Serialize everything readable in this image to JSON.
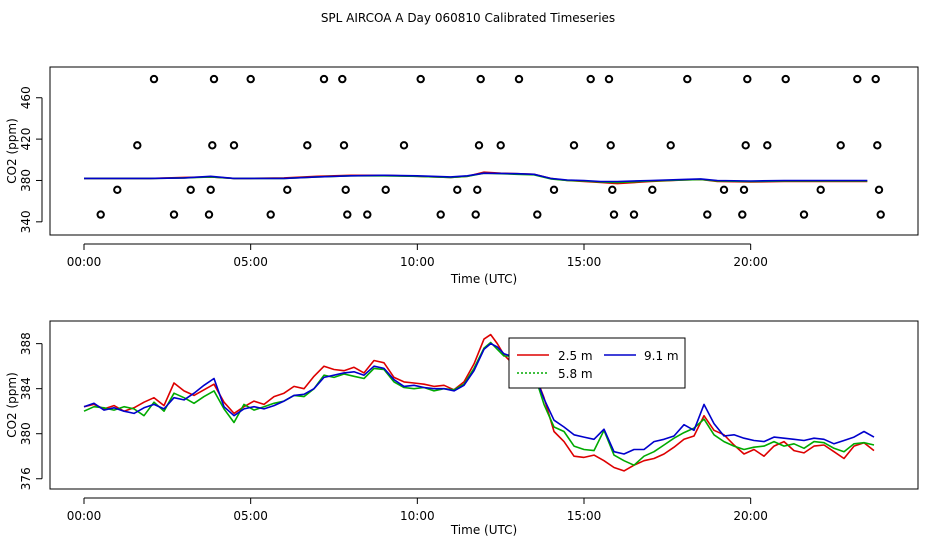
{
  "title": "SPL AIRCOA A  Day 060810  Calibrated Timeseries",
  "chart_data": [
    {
      "type": "line",
      "ylabel": "CO2 (ppm)",
      "xlabel": "Time (UTC)",
      "xlim": [
        0,
        24
      ],
      "ylim": [
        335,
        482
      ],
      "x_ticks": [
        0,
        5,
        10,
        15,
        20
      ],
      "x_tick_labels": [
        "00:00",
        "05:00",
        "10:00",
        "15:00",
        "20:00"
      ],
      "y_ticks": [
        340,
        380,
        420,
        460
      ],
      "y_tick_labels": [
        "340",
        "380",
        "420",
        "460"
      ],
      "series": [
        {
          "color": "#dd0000",
          "x": [
            0,
            1,
            2,
            3,
            3.8,
            4.5,
            5,
            6,
            7,
            8,
            9,
            10,
            11,
            11.5,
            12,
            12.5,
            13,
            13.5,
            14,
            14.5,
            15,
            15.5,
            16,
            17,
            18,
            18.5,
            19,
            20,
            21,
            22,
            23,
            23.5
          ],
          "values": [
            382,
            382,
            382,
            383,
            383.5,
            382,
            382,
            382.5,
            384,
            385,
            385,
            384,
            383,
            384,
            388,
            387,
            386.5,
            386,
            382,
            380,
            379,
            378,
            377,
            379,
            380.5,
            381,
            379,
            378.5,
            379,
            379,
            379,
            379
          ]
        },
        {
          "color": "#00aa00",
          "x": [
            0,
            1,
            2,
            3,
            3.8,
            4.5,
            5,
            6,
            7,
            8,
            9,
            10,
            11,
            11.5,
            12,
            12.5,
            13,
            13.5,
            14,
            14.5,
            15,
            15.5,
            16,
            17,
            18,
            18.5,
            19,
            20,
            21,
            22,
            23,
            23.5
          ],
          "values": [
            382,
            382,
            382,
            382.5,
            383.5,
            382,
            382,
            382,
            383.5,
            384.5,
            384.5,
            384,
            383,
            384,
            387,
            386.5,
            386,
            385.5,
            381.5,
            380,
            379.5,
            378.5,
            378,
            379.5,
            380.5,
            381,
            379.5,
            379,
            379.5,
            379.5,
            379.5,
            379.5
          ]
        },
        {
          "color": "#0000cc",
          "x": [
            0,
            1,
            2,
            3,
            3.8,
            4.5,
            5,
            6,
            7,
            8,
            9,
            10,
            11,
            11.5,
            12,
            12.5,
            13,
            13.5,
            14,
            14.5,
            15,
            15.5,
            16,
            17,
            18,
            18.5,
            19,
            20,
            21,
            22,
            23,
            23.5
          ],
          "values": [
            382,
            382,
            382,
            382.5,
            384,
            382,
            382,
            382,
            383.5,
            384.5,
            385,
            384.5,
            383.5,
            384.5,
            387,
            386.8,
            386.5,
            386,
            382,
            380.5,
            380,
            379,
            379,
            380,
            381,
            381.5,
            380,
            379.5,
            380,
            380,
            380,
            380
          ]
        }
      ],
      "markers": [
        {
          "x": 0.5,
          "y": 347
        },
        {
          "x": 1.0,
          "y": 371
        },
        {
          "x": 1.6,
          "y": 414
        },
        {
          "x": 2.1,
          "y": 478
        },
        {
          "x": 2.7,
          "y": 347
        },
        {
          "x": 3.2,
          "y": 371
        },
        {
          "x": 3.75,
          "y": 347
        },
        {
          "x": 3.8,
          "y": 371
        },
        {
          "x": 3.85,
          "y": 414
        },
        {
          "x": 3.9,
          "y": 478
        },
        {
          "x": 4.5,
          "y": 414
        },
        {
          "x": 5.0,
          "y": 478
        },
        {
          "x": 5.6,
          "y": 347
        },
        {
          "x": 6.1,
          "y": 371
        },
        {
          "x": 6.7,
          "y": 414
        },
        {
          "x": 7.2,
          "y": 478
        },
        {
          "x": 7.75,
          "y": 478
        },
        {
          "x": 7.8,
          "y": 414
        },
        {
          "x": 7.85,
          "y": 371
        },
        {
          "x": 7.9,
          "y": 347
        },
        {
          "x": 8.5,
          "y": 347
        },
        {
          "x": 9.05,
          "y": 371
        },
        {
          "x": 9.6,
          "y": 414
        },
        {
          "x": 10.1,
          "y": 478
        },
        {
          "x": 10.7,
          "y": 347
        },
        {
          "x": 11.2,
          "y": 371
        },
        {
          "x": 11.75,
          "y": 347
        },
        {
          "x": 11.8,
          "y": 371
        },
        {
          "x": 11.85,
          "y": 414
        },
        {
          "x": 11.9,
          "y": 478
        },
        {
          "x": 12.5,
          "y": 414
        },
        {
          "x": 13.05,
          "y": 478
        },
        {
          "x": 13.6,
          "y": 347
        },
        {
          "x": 14.1,
          "y": 371
        },
        {
          "x": 14.7,
          "y": 414
        },
        {
          "x": 15.2,
          "y": 478
        },
        {
          "x": 15.75,
          "y": 478
        },
        {
          "x": 15.8,
          "y": 414
        },
        {
          "x": 15.85,
          "y": 371
        },
        {
          "x": 15.9,
          "y": 347
        },
        {
          "x": 16.5,
          "y": 347
        },
        {
          "x": 17.05,
          "y": 371
        },
        {
          "x": 17.6,
          "y": 414
        },
        {
          "x": 18.1,
          "y": 478
        },
        {
          "x": 18.7,
          "y": 347
        },
        {
          "x": 19.2,
          "y": 371
        },
        {
          "x": 19.75,
          "y": 347
        },
        {
          "x": 19.8,
          "y": 371
        },
        {
          "x": 19.85,
          "y": 414
        },
        {
          "x": 19.9,
          "y": 478
        },
        {
          "x": 20.5,
          "y": 414
        },
        {
          "x": 21.05,
          "y": 478
        },
        {
          "x": 21.6,
          "y": 347
        },
        {
          "x": 22.1,
          "y": 371
        },
        {
          "x": 22.7,
          "y": 414
        },
        {
          "x": 23.2,
          "y": 478
        },
        {
          "x": 23.75,
          "y": 478
        },
        {
          "x": 23.8,
          "y": 414
        },
        {
          "x": 23.85,
          "y": 371
        },
        {
          "x": 23.9,
          "y": 347
        }
      ]
    },
    {
      "type": "line",
      "ylabel": "CO2 (ppm)",
      "xlabel": "Time (UTC)",
      "xlim": [
        0,
        24
      ],
      "ylim": [
        375.8,
        389.3
      ],
      "x_ticks": [
        0,
        5,
        10,
        15,
        20
      ],
      "x_tick_labels": [
        "00:00",
        "05:00",
        "10:00",
        "15:00",
        "20:00"
      ],
      "y_ticks": [
        376,
        380,
        384,
        388
      ],
      "y_tick_labels": [
        "376",
        "380",
        "384",
        "388"
      ],
      "legend": {
        "position": "top-right",
        "entries": [
          {
            "label": "2.5 m",
            "color": "#dd0000"
          },
          {
            "label": "5.8 m",
            "color": "#00aa00"
          },
          {
            "label": "9.1 m",
            "color": "#0000cc"
          }
        ]
      },
      "series": [
        {
          "name": "2.5 m",
          "color": "#dd0000",
          "x": [
            0,
            0.3,
            0.6,
            0.9,
            1.2,
            1.5,
            1.8,
            2.1,
            2.4,
            2.7,
            3.0,
            3.3,
            3.6,
            3.9,
            4.2,
            4.5,
            4.8,
            5.1,
            5.4,
            5.7,
            6.0,
            6.3,
            6.6,
            6.9,
            7.2,
            7.5,
            7.8,
            8.1,
            8.4,
            8.7,
            9.0,
            9.3,
            9.6,
            9.9,
            10.2,
            10.5,
            10.8,
            11.1,
            11.4,
            11.7,
            12.0,
            12.2,
            12.4,
            12.6,
            12.8,
            13.0,
            13.2,
            13.5,
            13.8,
            14.1,
            14.4,
            14.7,
            15.0,
            15.3,
            15.6,
            15.9,
            16.2,
            16.5,
            16.8,
            17.1,
            17.4,
            17.7,
            18.0,
            18.3,
            18.6,
            18.9,
            19.2,
            19.5,
            19.8,
            20.1,
            20.4,
            20.7,
            21.0,
            21.3,
            21.6,
            21.9,
            22.2,
            22.5,
            22.8,
            23.1,
            23.4,
            23.7
          ],
          "values": [
            382.4,
            382.6,
            382.2,
            382.5,
            382.0,
            382.3,
            382.8,
            383.2,
            382.5,
            384.5,
            383.8,
            383.4,
            383.9,
            384.4,
            382.8,
            381.8,
            382.4,
            382.9,
            382.6,
            383.3,
            383.6,
            384.2,
            384.0,
            385.1,
            386.0,
            385.7,
            385.6,
            385.9,
            385.4,
            386.5,
            386.3,
            385.0,
            384.6,
            384.5,
            384.4,
            384.2,
            384.3,
            383.9,
            384.6,
            386.2,
            388.4,
            388.8,
            388.0,
            387.0,
            386.4,
            387.1,
            386.6,
            385.5,
            383.2,
            380.2,
            379.3,
            378.0,
            377.9,
            378.1,
            377.6,
            377.0,
            376.7,
            377.2,
            377.6,
            377.8,
            378.2,
            378.8,
            379.5,
            379.8,
            381.6,
            380.3,
            379.9,
            379.0,
            378.2,
            378.6,
            378.0,
            378.9,
            379.3,
            378.5,
            378.3,
            378.9,
            379.0,
            378.4,
            377.8,
            378.9,
            379.2,
            378.5
          ]
        },
        {
          "name": "5.8 m",
          "color": "#00aa00",
          "x": [
            0,
            0.3,
            0.6,
            0.9,
            1.2,
            1.5,
            1.8,
            2.1,
            2.4,
            2.7,
            3.0,
            3.3,
            3.6,
            3.9,
            4.2,
            4.5,
            4.8,
            5.1,
            5.4,
            5.7,
            6.0,
            6.3,
            6.6,
            6.9,
            7.2,
            7.5,
            7.8,
            8.1,
            8.4,
            8.7,
            9.0,
            9.3,
            9.6,
            9.9,
            10.2,
            10.5,
            10.8,
            11.1,
            11.4,
            11.7,
            12.0,
            12.2,
            12.4,
            12.6,
            12.8,
            13.0,
            13.2,
            13.5,
            13.8,
            14.1,
            14.4,
            14.7,
            15.0,
            15.3,
            15.6,
            15.9,
            16.2,
            16.5,
            16.8,
            17.1,
            17.4,
            17.7,
            18.0,
            18.3,
            18.6,
            18.9,
            19.2,
            19.5,
            19.8,
            20.1,
            20.4,
            20.7,
            21.0,
            21.3,
            21.6,
            21.9,
            22.2,
            22.5,
            22.8,
            23.1,
            23.4,
            23.7
          ],
          "values": [
            382.0,
            382.4,
            382.3,
            382.1,
            382.4,
            382.2,
            381.6,
            382.8,
            382.0,
            383.6,
            383.2,
            382.7,
            383.3,
            383.8,
            382.2,
            381.0,
            382.6,
            382.1,
            382.4,
            382.7,
            382.9,
            383.4,
            383.3,
            384.0,
            385.2,
            385.0,
            385.3,
            385.1,
            384.9,
            385.8,
            385.7,
            384.6,
            384.1,
            384.0,
            384.1,
            383.8,
            384.0,
            383.9,
            384.4,
            385.8,
            387.6,
            388.1,
            387.5,
            386.9,
            386.9,
            386.6,
            386.4,
            385.4,
            382.6,
            380.6,
            380.2,
            378.9,
            378.6,
            378.5,
            380.3,
            378.1,
            377.6,
            377.2,
            378.0,
            378.4,
            379.0,
            379.6,
            380.1,
            380.5,
            381.3,
            379.9,
            379.3,
            378.9,
            378.6,
            378.8,
            378.9,
            379.3,
            378.9,
            379.1,
            378.7,
            379.3,
            379.2,
            378.7,
            378.4,
            379.1,
            379.2,
            379.0
          ]
        },
        {
          "name": "9.1 m",
          "color": "#0000cc",
          "x": [
            0,
            0.3,
            0.6,
            0.9,
            1.2,
            1.5,
            1.8,
            2.1,
            2.4,
            2.7,
            3.0,
            3.3,
            3.6,
            3.9,
            4.2,
            4.5,
            4.8,
            5.1,
            5.4,
            5.7,
            6.0,
            6.3,
            6.6,
            6.9,
            7.2,
            7.5,
            7.8,
            8.1,
            8.4,
            8.7,
            9.0,
            9.3,
            9.6,
            9.9,
            10.2,
            10.5,
            10.8,
            11.1,
            11.4,
            11.7,
            12.0,
            12.2,
            12.4,
            12.6,
            12.8,
            13.0,
            13.2,
            13.5,
            13.8,
            14.1,
            14.4,
            14.7,
            15.0,
            15.3,
            15.6,
            15.9,
            16.2,
            16.5,
            16.8,
            17.1,
            17.4,
            17.7,
            18.0,
            18.3,
            18.6,
            18.9,
            19.2,
            19.5,
            19.8,
            20.1,
            20.4,
            20.7,
            21.0,
            21.3,
            21.6,
            21.9,
            22.2,
            22.5,
            22.8,
            23.1,
            23.4,
            23.7
          ],
          "values": [
            382.4,
            382.7,
            382.1,
            382.3,
            382.0,
            381.8,
            382.3,
            382.6,
            382.2,
            383.2,
            383.0,
            383.6,
            384.3,
            384.9,
            382.4,
            381.6,
            382.2,
            382.4,
            382.2,
            382.5,
            382.9,
            383.4,
            383.5,
            384.0,
            385.0,
            385.2,
            385.4,
            385.5,
            385.2,
            386.0,
            385.8,
            384.8,
            384.2,
            384.3,
            384.1,
            384.0,
            384.0,
            383.8,
            384.3,
            385.6,
            387.5,
            388.0,
            387.7,
            387.1,
            386.9,
            387.4,
            386.6,
            385.4,
            383.1,
            381.2,
            380.6,
            379.9,
            379.7,
            379.5,
            380.4,
            378.4,
            378.2,
            378.6,
            378.6,
            379.3,
            379.5,
            379.8,
            380.8,
            380.3,
            382.6,
            380.9,
            379.8,
            379.9,
            379.6,
            379.4,
            379.3,
            379.7,
            379.6,
            379.5,
            379.4,
            379.6,
            379.5,
            379.1,
            379.4,
            379.7,
            380.2,
            379.7
          ]
        }
      ]
    }
  ]
}
